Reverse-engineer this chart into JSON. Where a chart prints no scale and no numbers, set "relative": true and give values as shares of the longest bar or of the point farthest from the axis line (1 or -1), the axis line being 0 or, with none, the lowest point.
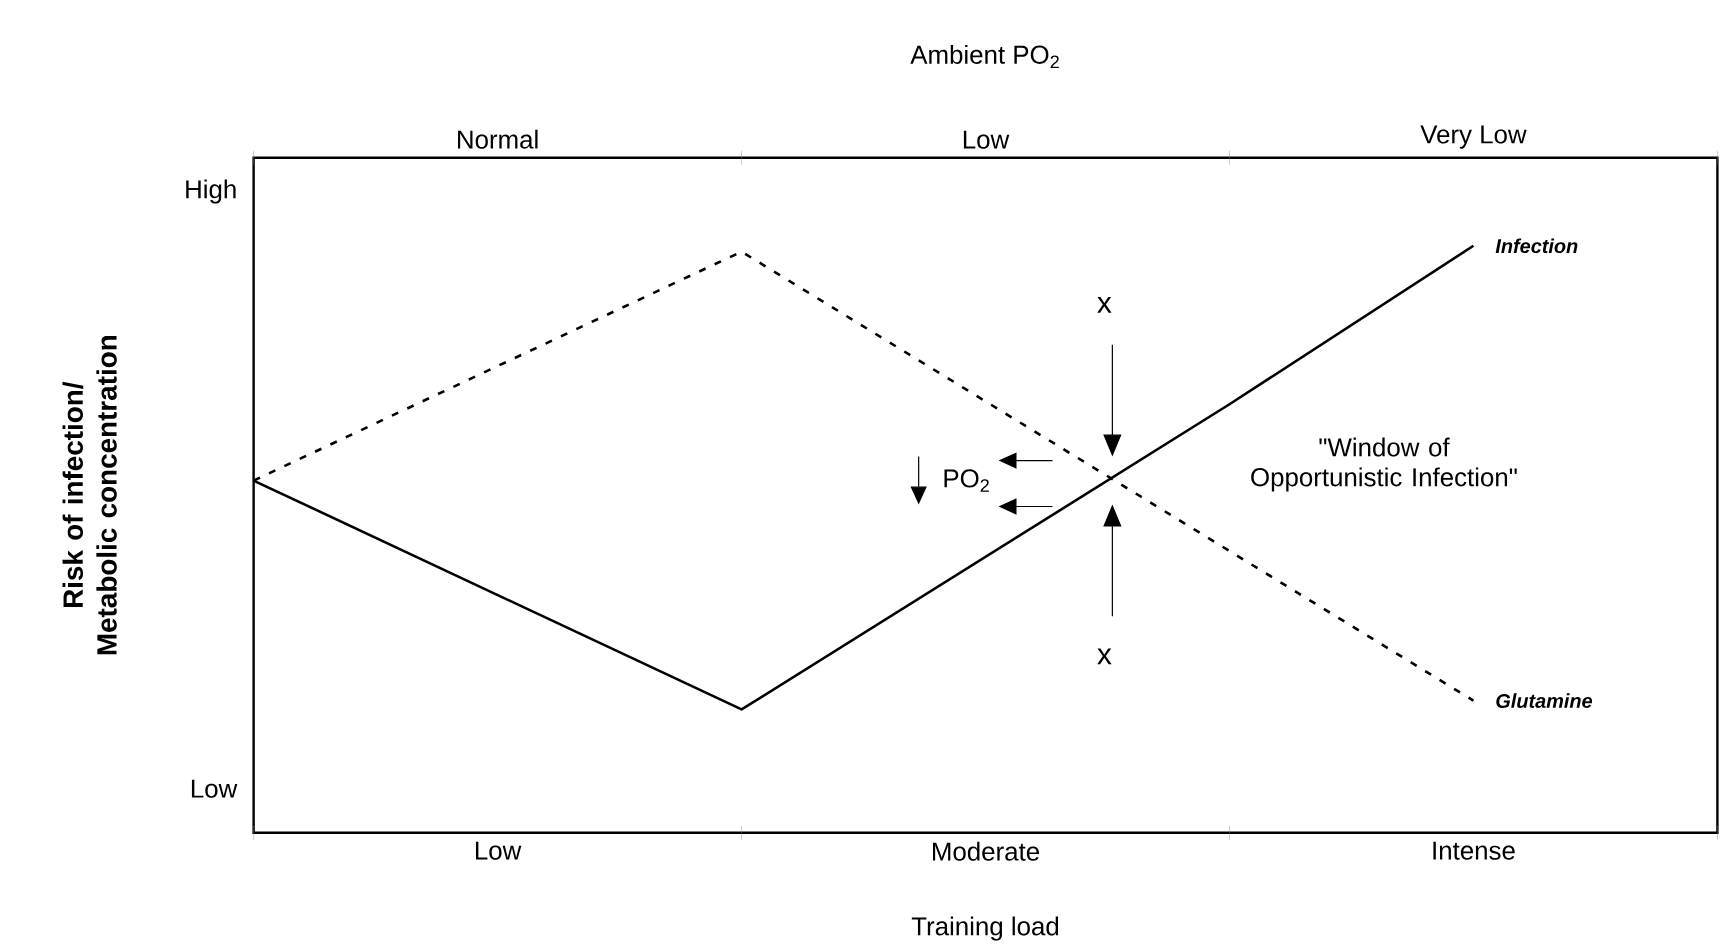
{
  "chart_data": {
    "type": "line",
    "relative": true,
    "xlabel": "Training load",
    "x2label": "Ambient PO$_{2}$",
    "ylabel": "Risk of infection/ Metabolic concentration",
    "categories": [
      null,
      "Low",
      null,
      "Moderate",
      null,
      "Intense",
      null
    ],
    "legend": false,
    "series": [
      {
        "name": "Infection",
        "color": "#000000",
        "line_style": "solid",
        "values": [
          0.6,
          0.405,
          0.21,
          0.47,
          0.73,
          1,
          null
        ]
      },
      {
        "name": "Glutamine",
        "color": "#000000",
        "line_style": "dashed",
        "values": [
          0.6,
          0.795,
          0.99,
          0.735,
          0.48,
          0.225,
          null
        ]
      }
    ],
    "annotations": [
      "High",
      "Low",
      "x",
      "x",
      "PO$_{2}$",
      "\"Window of Opportunistic Infection\"",
      "Normal",
      "Low",
      "Very Low"
    ]
  }
}
